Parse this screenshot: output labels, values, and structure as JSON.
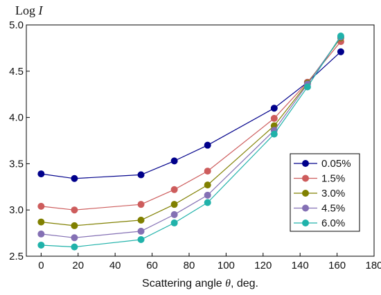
{
  "chart_data": {
    "type": "line",
    "title": "",
    "xlabel": "Scattering angle θ, deg.",
    "ylabel": "Log I",
    "xlim": [
      -8,
      180
    ],
    "ylim": [
      2.5,
      5.0
    ],
    "xticks": [
      0,
      20,
      40,
      60,
      80,
      100,
      120,
      140,
      160,
      180
    ],
    "yticks": [
      2.5,
      3.0,
      3.5,
      4.0,
      4.5,
      5.0
    ],
    "xtick_labels": [
      "0",
      "20",
      "40",
      "60",
      "80",
      "100",
      "120",
      "140",
      "160",
      "180"
    ],
    "ytick_labels": [
      "2.5",
      "3.0",
      "3.5",
      "4.0",
      "4.5",
      "5.0"
    ],
    "grid": false,
    "legend_position": "center-right",
    "x": [
      0,
      18,
      54,
      72,
      90,
      126,
      144,
      162
    ],
    "series": [
      {
        "name": "0.05%",
        "color": "#00008b",
        "values": [
          3.39,
          3.34,
          3.38,
          3.53,
          3.7,
          4.1,
          4.38,
          4.71
        ]
      },
      {
        "name": "1.5%",
        "color": "#cd5c5c",
        "values": [
          3.04,
          3.0,
          3.06,
          3.22,
          3.42,
          3.99,
          4.38,
          4.82
        ]
      },
      {
        "name": "3.0%",
        "color": "#808000",
        "values": [
          2.87,
          2.83,
          2.89,
          3.06,
          3.27,
          3.91,
          4.37,
          4.86
        ]
      },
      {
        "name": "4.5%",
        "color": "#8470b4",
        "values": [
          2.74,
          2.7,
          2.77,
          2.95,
          3.16,
          3.86,
          4.36,
          4.87
        ]
      },
      {
        "name": "6.0%",
        "color": "#20b2aa",
        "values": [
          2.62,
          2.6,
          2.68,
          2.86,
          3.08,
          3.82,
          4.33,
          4.88
        ]
      }
    ]
  }
}
